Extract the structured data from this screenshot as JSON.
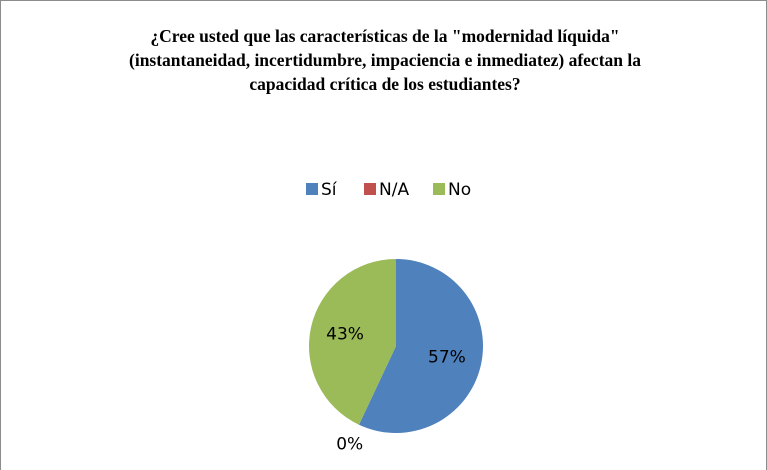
{
  "chart_data": {
    "type": "pie",
    "title": "¿Cree usted que las características de la \"modernidad líquida\" (instantaneidad, incertidumbre, impaciencia e inmediatez) afectan la capacidad crítica de los estudiantes?",
    "categories": [
      "Sí",
      "N/A",
      "No"
    ],
    "values": [
      57,
      0,
      43
    ],
    "value_labels": [
      "57%",
      "0%",
      "43%"
    ],
    "colors": [
      "#4f81bd",
      "#c0504d",
      "#9bbb59"
    ],
    "legend": "top"
  }
}
